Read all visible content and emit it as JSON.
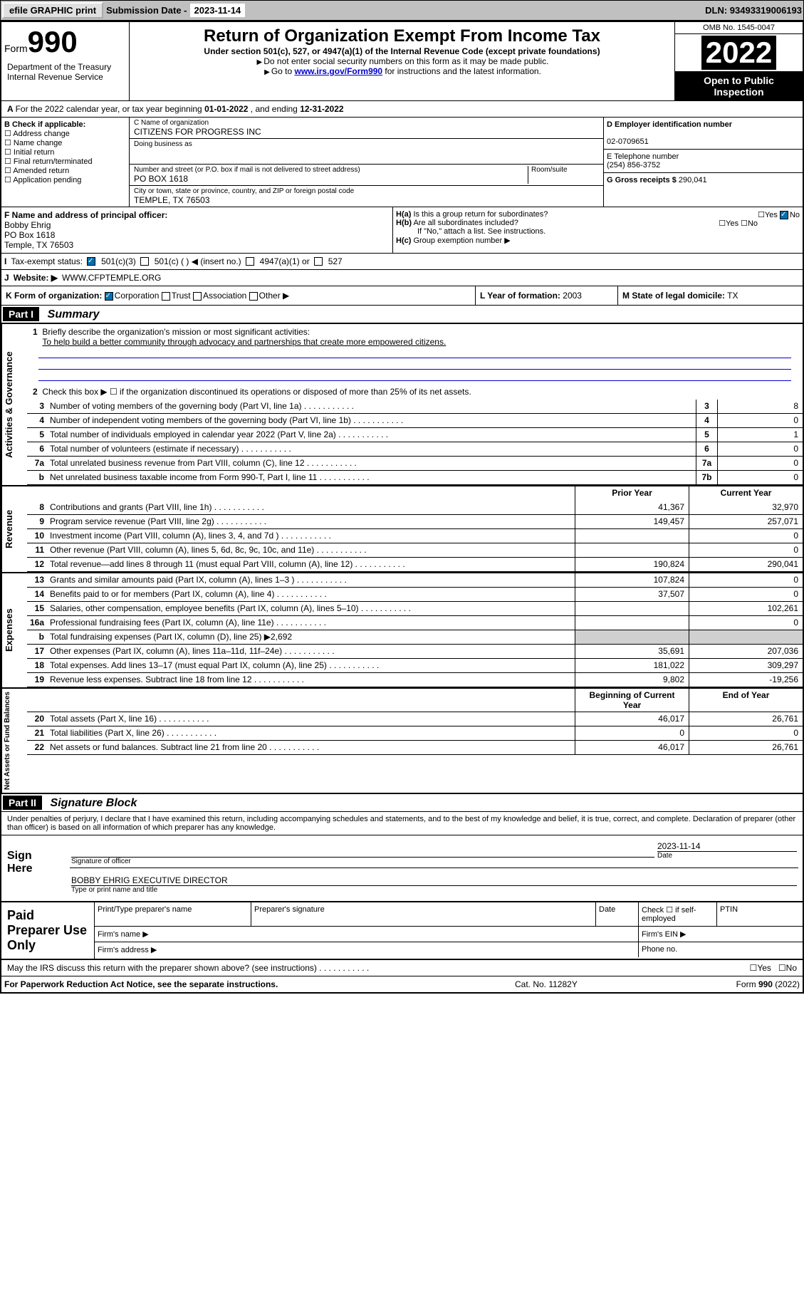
{
  "topbar": {
    "efile": "efile GRAPHIC print",
    "sub_label": "Submission Date -",
    "sub_date": "2023-11-14",
    "dln": "DLN: 93493319006193"
  },
  "header": {
    "form_prefix": "Form",
    "form_num": "990",
    "title": "Return of Organization Exempt From Income Tax",
    "subtitle": "Under section 501(c), 527, or 4947(a)(1) of the Internal Revenue Code (except private foundations)",
    "note1": "Do not enter social security numbers on this form as it may be made public.",
    "note2_pre": "Go to ",
    "note2_link": "www.irs.gov/Form990",
    "note2_post": " for instructions and the latest information.",
    "dept": "Department of the Treasury\nInternal Revenue Service",
    "omb": "OMB No. 1545-0047",
    "year": "2022",
    "open": "Open to Public Inspection"
  },
  "rowA": {
    "text_pre": "For the 2022 calendar year, or tax year beginning ",
    "begin": "01-01-2022",
    "mid": " , and ending ",
    "end": "12-31-2022"
  },
  "colB": {
    "label": "B Check if applicable:",
    "items": [
      "Address change",
      "Name change",
      "Initial return",
      "Final return/terminated",
      "Amended return",
      "Application pending"
    ]
  },
  "colC": {
    "name_lbl": "C Name of organization",
    "name": "CITIZENS FOR PROGRESS INC",
    "dba_lbl": "Doing business as",
    "addr_lbl": "Number and street (or P.O. box if mail is not delivered to street address)",
    "room_lbl": "Room/suite",
    "addr": "PO BOX 1618",
    "city_lbl": "City or town, state or province, country, and ZIP or foreign postal code",
    "city": "TEMPLE, TX  76503"
  },
  "colDE": {
    "d_lbl": "D Employer identification number",
    "d_val": "02-0709651",
    "e_lbl": "E Telephone number",
    "e_val": "(254) 856-3752",
    "g_lbl": "G Gross receipts $",
    "g_val": "290,041"
  },
  "rowF": {
    "f_lbl": "F Name and address of principal officer:",
    "f_name": "Bobby Ehrig",
    "f_addr1": "PO Box 1618",
    "f_addr2": "Temple, TX  76503",
    "ha": "H(a) Is this a group return for subordinates?",
    "hb": "H(b) Are all subordinates included?",
    "hnote": "If \"No,\" attach a list. See instructions.",
    "hc": "H(c) Group exemption number ▶"
  },
  "rowI": {
    "lbl": "Tax-exempt status:",
    "opt1": "501(c)(3)",
    "opt2": "501(c) (  ) ◀ (insert no.)",
    "opt3": "4947(a)(1) or",
    "opt4": "527"
  },
  "rowJ": {
    "lbl": "Website: ▶",
    "val": "WWW.CFPTEMPLE.ORG"
  },
  "rowK": {
    "k_lbl": "K Form of organization:",
    "k_opts": [
      "Corporation",
      "Trust",
      "Association",
      "Other ▶"
    ],
    "l_lbl": "L Year of formation:",
    "l_val": "2003",
    "m_lbl": "M State of legal domicile:",
    "m_val": "TX"
  },
  "part1": {
    "hdr": "Part I",
    "title": "Summary",
    "q1_lbl": "Briefly describe the organization's mission or most significant activities:",
    "q1_val": "To help build a better community through advocacy and partnerships that create more empowered citizens.",
    "q2": "Check this box ▶ ☐ if the organization discontinued its operations or disposed of more than 25% of its net assets.",
    "sections": {
      "gov": {
        "label": "Activities & Governance"
      },
      "rev": {
        "label": "Revenue"
      },
      "exp": {
        "label": "Expenses"
      },
      "net": {
        "label": "Net Assets or Fund Balances"
      }
    },
    "lines_idx": [
      {
        "n": "3",
        "t": "Number of voting members of the governing body (Part VI, line 1a)",
        "i": "3",
        "v": "8"
      },
      {
        "n": "4",
        "t": "Number of independent voting members of the governing body (Part VI, line 1b)",
        "i": "4",
        "v": "0"
      },
      {
        "n": "5",
        "t": "Total number of individuals employed in calendar year 2022 (Part V, line 2a)",
        "i": "5",
        "v": "1"
      },
      {
        "n": "6",
        "t": "Total number of volunteers (estimate if necessary)",
        "i": "6",
        "v": "0"
      },
      {
        "n": "7a",
        "t": "Total unrelated business revenue from Part VIII, column (C), line 12",
        "i": "7a",
        "v": "0"
      },
      {
        "n": "b",
        "t": "Net unrelated business taxable income from Form 990-T, Part I, line 11",
        "i": "7b",
        "v": "0"
      }
    ],
    "col_hdr1": "Prior Year",
    "col_hdr2": "Current Year",
    "rev_lines": [
      {
        "n": "8",
        "t": "Contributions and grants (Part VIII, line 1h)",
        "c1": "41,367",
        "c2": "32,970"
      },
      {
        "n": "9",
        "t": "Program service revenue (Part VIII, line 2g)",
        "c1": "149,457",
        "c2": "257,071"
      },
      {
        "n": "10",
        "t": "Investment income (Part VIII, column (A), lines 3, 4, and 7d )",
        "c1": "",
        "c2": "0"
      },
      {
        "n": "11",
        "t": "Other revenue (Part VIII, column (A), lines 5, 6d, 8c, 9c, 10c, and 11e)",
        "c1": "",
        "c2": "0"
      },
      {
        "n": "12",
        "t": "Total revenue—add lines 8 through 11 (must equal Part VIII, column (A), line 12)",
        "c1": "190,824",
        "c2": "290,041"
      }
    ],
    "exp_lines": [
      {
        "n": "13",
        "t": "Grants and similar amounts paid (Part IX, column (A), lines 1–3 )",
        "c1": "107,824",
        "c2": "0"
      },
      {
        "n": "14",
        "t": "Benefits paid to or for members (Part IX, column (A), line 4)",
        "c1": "37,507",
        "c2": "0"
      },
      {
        "n": "15",
        "t": "Salaries, other compensation, employee benefits (Part IX, column (A), lines 5–10)",
        "c1": "",
        "c2": "102,261"
      },
      {
        "n": "16a",
        "t": "Professional fundraising fees (Part IX, column (A), line 11e)",
        "c1": "",
        "c2": "0"
      },
      {
        "n": "b",
        "t": "Total fundraising expenses (Part IX, column (D), line 25) ▶2,692",
        "c1": "—grey—",
        "c2": "—grey—"
      },
      {
        "n": "17",
        "t": "Other expenses (Part IX, column (A), lines 11a–11d, 11f–24e)",
        "c1": "35,691",
        "c2": "207,036"
      },
      {
        "n": "18",
        "t": "Total expenses. Add lines 13–17 (must equal Part IX, column (A), line 25)",
        "c1": "181,022",
        "c2": "309,297"
      },
      {
        "n": "19",
        "t": "Revenue less expenses. Subtract line 18 from line 12",
        "c1": "9,802",
        "c2": "-19,256"
      }
    ],
    "net_hdr1": "Beginning of Current Year",
    "net_hdr2": "End of Year",
    "net_lines": [
      {
        "n": "20",
        "t": "Total assets (Part X, line 16)",
        "c1": "46,017",
        "c2": "26,761"
      },
      {
        "n": "21",
        "t": "Total liabilities (Part X, line 26)",
        "c1": "0",
        "c2": "0"
      },
      {
        "n": "22",
        "t": "Net assets or fund balances. Subtract line 21 from line 20",
        "c1": "46,017",
        "c2": "26,761"
      }
    ]
  },
  "part2": {
    "hdr": "Part II",
    "title": "Signature Block",
    "decl": "Under penalties of perjury, I declare that I have examined this return, including accompanying schedules and statements, and to the best of my knowledge and belief, it is true, correct, and complete. Declaration of preparer (other than officer) is based on all information of which preparer has any knowledge.",
    "sign_here": "Sign Here",
    "sig_officer": "Signature of officer",
    "sig_date_lbl": "Date",
    "sig_date": "2023-11-14",
    "sig_name": "BOBBY EHRIG  EXECUTIVE DIRECTOR",
    "sig_name_lbl": "Type or print name and title",
    "prep": "Paid Preparer Use Only",
    "prep_name_lbl": "Print/Type preparer's name",
    "prep_sig_lbl": "Preparer's signature",
    "prep_date_lbl": "Date",
    "prep_check": "Check ☐ if self-employed",
    "prep_ptin": "PTIN",
    "firm_name": "Firm's name  ▶",
    "firm_ein": "Firm's EIN ▶",
    "firm_addr": "Firm's address ▶",
    "firm_phone": "Phone no."
  },
  "footer": {
    "discuss": "May the IRS discuss this return with the preparer shown above? (see instructions)",
    "yes": "Yes",
    "no": "No",
    "paperwork": "For Paperwork Reduction Act Notice, see the separate instructions.",
    "cat": "Cat. No. 11282Y",
    "form": "Form 990 (2022)"
  }
}
